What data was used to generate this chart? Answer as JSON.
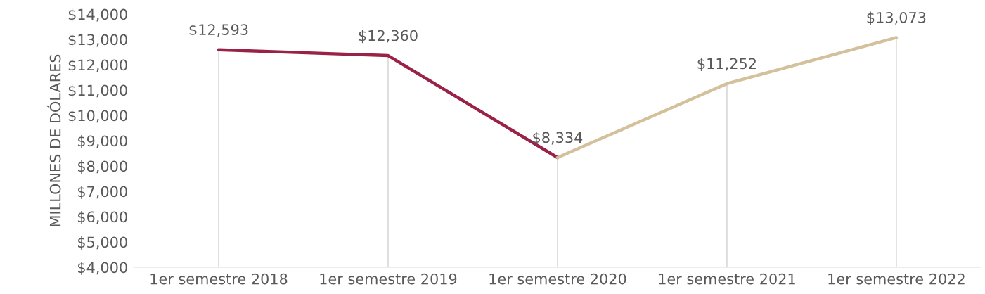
{
  "chart_data": {
    "type": "line",
    "ylabel": "MILLONES DE DÓLARES",
    "categories": [
      "1er semestre 2018",
      "1er semestre 2019",
      "1er semestre 2020",
      "1er semestre 2021",
      "1er semestre 2022"
    ],
    "series": [
      {
        "color": "#9b2247",
        "values": [
          12593,
          12360,
          8334,
          null,
          null
        ],
        "value_labels": [
          "$12,593",
          "$12,360",
          "$8,334",
          null,
          null
        ]
      },
      {
        "color": "#d4c19c",
        "values": [
          null,
          null,
          8334,
          11252,
          13073
        ],
        "value_labels": [
          null,
          null,
          null,
          "$11,252",
          "$13,073"
        ]
      }
    ],
    "ylim": [
      4000,
      14000
    ],
    "yticks": [
      {
        "value": 4000,
        "label": "$4,000"
      },
      {
        "value": 5000,
        "label": "$5,000"
      },
      {
        "value": 6000,
        "label": "$6,000"
      },
      {
        "value": 7000,
        "label": "$7,000"
      },
      {
        "value": 8000,
        "label": "$8,000"
      },
      {
        "value": 9000,
        "label": "$9,000"
      },
      {
        "value": 10000,
        "label": "$10,000"
      },
      {
        "value": 11000,
        "label": "$11,000"
      },
      {
        "value": 12000,
        "label": "$12,000"
      },
      {
        "value": 13000,
        "label": "$13,000"
      },
      {
        "value": 14000,
        "label": "$14,000"
      }
    ],
    "grid": "x",
    "marker": "none",
    "line_style": "solid"
  }
}
